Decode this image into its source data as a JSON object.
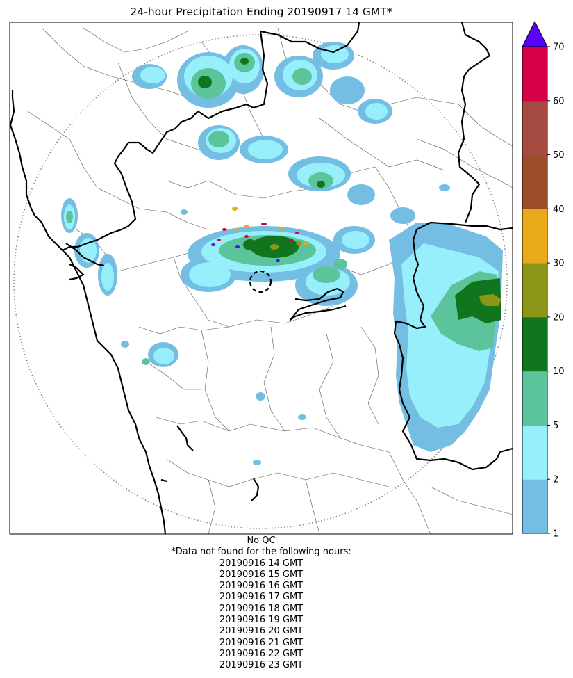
{
  "title": "24-hour Precipitation Ending 20190917 14 GMT*",
  "colorbar": {
    "unit": "",
    "extend": "max",
    "extend_color": "#5a00ff",
    "levels": [
      {
        "from": 1,
        "to": 2,
        "color": "#74bde3"
      },
      {
        "from": 2,
        "to": 5,
        "color": "#97effc"
      },
      {
        "from": 5,
        "to": 10,
        "color": "#5cc49a"
      },
      {
        "from": 10,
        "to": 20,
        "color": "#10751c"
      },
      {
        "from": 20,
        "to": 30,
        "color": "#8c9617"
      },
      {
        "from": 30,
        "to": 40,
        "color": "#e8a91a"
      },
      {
        "from": 40,
        "to": 50,
        "color": "#9a4d28"
      },
      {
        "from": 50,
        "to": 60,
        "color": "#a64b41"
      },
      {
        "from": 60,
        "to": 70,
        "color": "#d50045"
      }
    ],
    "tick_labels": [
      "1",
      "2",
      "5",
      "10",
      "20",
      "30",
      "40",
      "50",
      "60",
      "70"
    ]
  },
  "notes": {
    "qc": "No QC",
    "missing_header": "*Data not found for the following hours:",
    "missing_hours": [
      "20190916 14 GMT",
      "20190916 15 GMT",
      "20190916 16 GMT",
      "20190916 17 GMT",
      "20190916 18 GMT",
      "20190916 19 GMT",
      "20190916 20 GMT",
      "20190916 21 GMT",
      "20190916 22 GMT",
      "20190916 23 GMT"
    ]
  }
}
